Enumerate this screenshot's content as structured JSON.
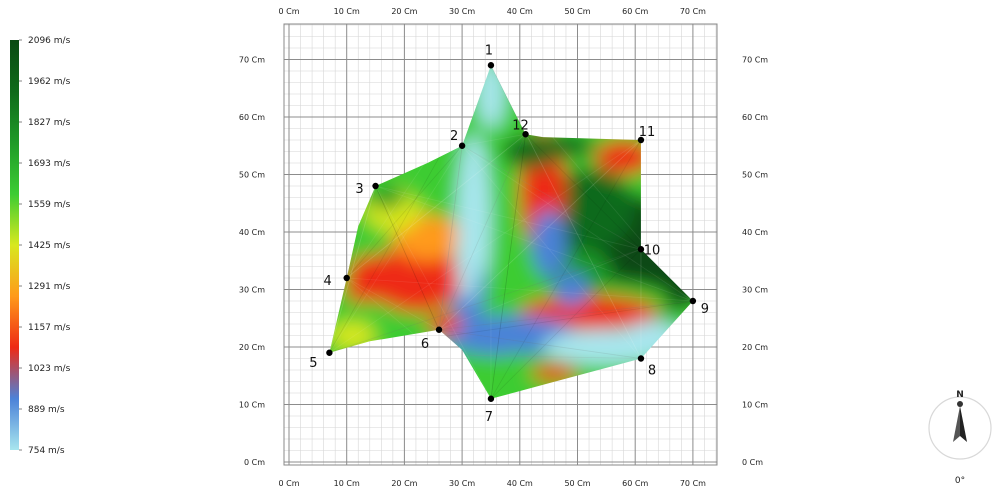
{
  "chart_data": {
    "type": "heatmap",
    "unit": "Cm",
    "xlim": [
      0,
      75
    ],
    "ylim": [
      0,
      75
    ],
    "x_ticks": [
      "0 Cm",
      "10 Cm",
      "20 Cm",
      "30 Cm",
      "40 Cm",
      "50 Cm",
      "60 Cm",
      "70 Cm"
    ],
    "y_ticks": [
      "0 Cm",
      "10 Cm",
      "20 Cm",
      "30 Cm",
      "40 Cm",
      "50 Cm",
      "60 Cm",
      "70 Cm"
    ],
    "grid": true,
    "legend": {
      "placement": "left",
      "labels": [
        "2096 m/s",
        "1962 m/s",
        "1827 m/s",
        "1693 m/s",
        "1559 m/s",
        "1425 m/s",
        "1291 m/s",
        "1157 m/s",
        "1023 m/s",
        "889 m/s",
        "754 m/s"
      ],
      "min": 754,
      "max": 2096,
      "colors": [
        "#0a4a12",
        "#0f6a1a",
        "#1f9a28",
        "#3ccc33",
        "#d8e81f",
        "#ff9a1a",
        "#ee2a15",
        "#4c82d8",
        "#a8e6ee"
      ]
    },
    "sensor_points": [
      {
        "id": "1",
        "x": 35,
        "y": 69
      },
      {
        "id": "2",
        "x": 30,
        "y": 55
      },
      {
        "id": "3",
        "x": 15,
        "y": 48
      },
      {
        "id": "4",
        "x": 10,
        "y": 32
      },
      {
        "id": "5",
        "x": 7,
        "y": 19
      },
      {
        "id": "6",
        "x": 26,
        "y": 23
      },
      {
        "id": "7",
        "x": 35,
        "y": 11
      },
      {
        "id": "8",
        "x": 61,
        "y": 18
      },
      {
        "id": "9",
        "x": 70,
        "y": 28
      },
      {
        "id": "10",
        "x": 61,
        "y": 37
      },
      {
        "id": "11",
        "x": 61,
        "y": 56
      },
      {
        "id": "12",
        "x": 41,
        "y": 57
      }
    ]
  },
  "compass": {
    "north_label": "N",
    "angle_label": "0°"
  }
}
